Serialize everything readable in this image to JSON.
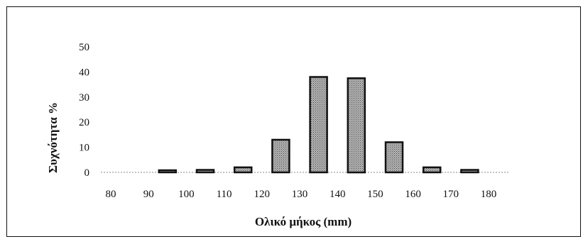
{
  "chart_data": {
    "type": "bar",
    "title": "",
    "xlabel": "Ολικό μήκος (mm)",
    "ylabel": "Συχνότητα %",
    "categories": [
      "80",
      "90",
      "100",
      "110",
      "120",
      "130",
      "140",
      "150",
      "160",
      "170",
      "180"
    ],
    "values": [
      0,
      0.5,
      1,
      2,
      13,
      38,
      37.5,
      12,
      2,
      1,
      0
    ],
    "ylim": [
      0,
      50
    ],
    "yticks": [
      "0",
      "10",
      "20",
      "30",
      "40",
      "50"
    ],
    "grid": false,
    "legend": "none",
    "bar_fill": "#9a9a9a",
    "bar_edge": "#111111"
  }
}
